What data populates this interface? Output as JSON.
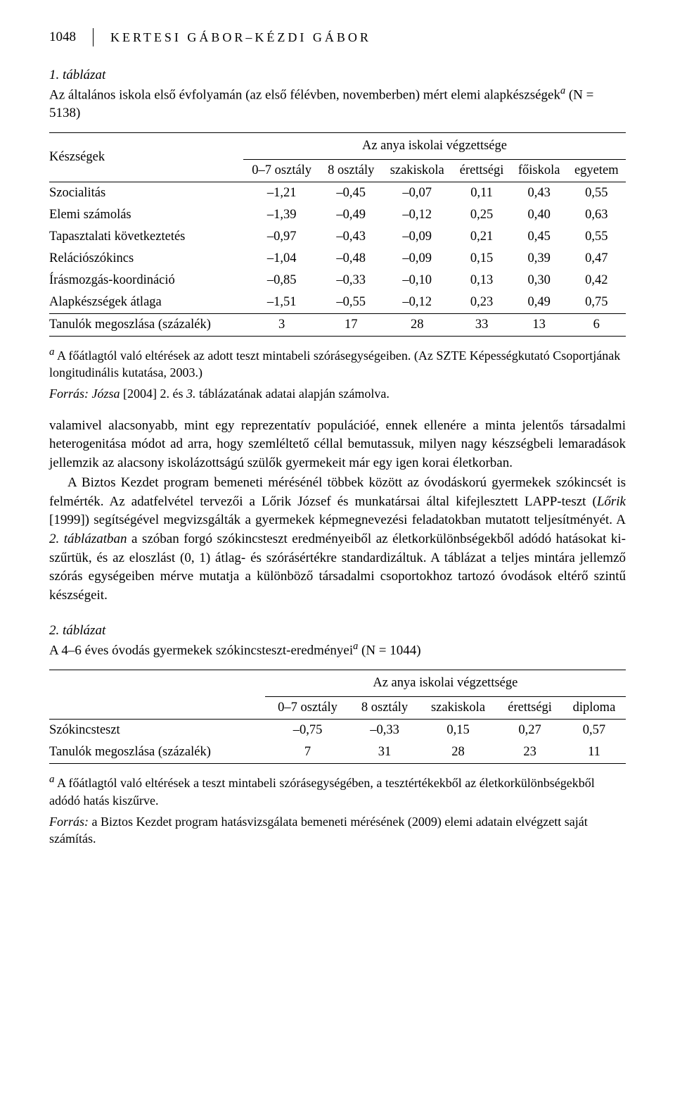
{
  "header": {
    "page_number": "1048",
    "authors": "KERTESI GÁBOR–KÉZDI GÁBOR"
  },
  "table1": {
    "label": "1. táblázat",
    "caption_prefix": "Az általános iskola első évfolyamán (az első félévben, novemberben) mért elemi alapkészségek",
    "caption_suffix": " (N = 5138)",
    "col_left_header": "Készségek",
    "spanning_header": "Az anya iskolai végzettsége",
    "columns": [
      "0–7 osztály",
      "8 osztály",
      "szakiskola",
      "érettségi",
      "főiskola",
      "egyetem"
    ],
    "rows": [
      {
        "label": "Szocialitás",
        "values": [
          "–1,21",
          "–0,45",
          "–0,07",
          "0,11",
          "0,43",
          "0,55"
        ]
      },
      {
        "label": "Elemi számolás",
        "values": [
          "–1,39",
          "–0,49",
          "–0,12",
          "0,25",
          "0,40",
          "0,63"
        ]
      },
      {
        "label": "Tapasztalati következtetés",
        "values": [
          "–0,97",
          "–0,43",
          "–0,09",
          "0,21",
          "0,45",
          "0,55"
        ]
      },
      {
        "label": "Relációszókincs",
        "values": [
          "–1,04",
          "–0,48",
          "–0,09",
          "0,15",
          "0,39",
          "0,47"
        ]
      },
      {
        "label": "Írásmozgás-koordináció",
        "values": [
          "–0,85",
          "–0,33",
          "–0,10",
          "0,13",
          "0,30",
          "0,42"
        ]
      },
      {
        "label": "Alapkészségek átlaga",
        "values": [
          "–1,51",
          "–0,55",
          "–0,12",
          "0,23",
          "0,49",
          "0,75"
        ]
      }
    ],
    "footer_row": {
      "label": "Tanulók megoszlása (százalék)",
      "values": [
        "3",
        "17",
        "28",
        "33",
        "13",
        "6"
      ]
    },
    "footnote": "A főátlagtól való eltérések az adott teszt mintabeli szórásegységeiben. (Az SZTE Képesség­kutató Csoportjának longitudinális kutatása, 2003.)",
    "source_prefix": "Forrás: Józsa",
    "source_year": "[2004] 2.",
    "source_mid": " és ",
    "source_em": "3.",
    "source_suffix": " táblázatának adatai alapján számolva."
  },
  "paragraphs": {
    "p1": "valamivel alacsonyabb, mint egy reprezentatív populációé, ennek ellenére a minta je­lentős társadalmi heterogenitása módot ad arra, hogy szemléltető céllal bemutassuk, milyen nagy készségbeli lemaradások jellemzik az alacsony iskolázottságú szülők gyermekeit már egy igen korai életkorban.",
    "p2a": "A Biztos Kezdet program bemeneti mérésénél többek között az óvodáskorú gyer­mekek szókincsét is felmérték. Az adatfelvétel tervezői a Lőrik József és munkatársai által kifejlesztett LAPP-teszt (",
    "p2_em1": "Lőrik",
    "p2b": " [1999]) segítségével megvizsgálták a gyermekek képmegnevezési feladatokban mutatott teljesítményét. A ",
    "p2_em2": "2. táblázatban",
    "p2c": " a szóban forgó szókincsteszt eredményeiből az életkorkülönbségekből adódó hatásokat ki­szűrtük, és az eloszlást (0, 1) átlag- és szórásértékre standardizáltuk. A táblázat a teljes mintára jellemző szórás egységeiben mérve mutatja a különböző társadalmi csoportokhoz tartozó óvodások eltérő szintű készségeit."
  },
  "table2": {
    "label": "2. táblázat",
    "caption_prefix": "A 4–6 éves óvodás gyermekek szókincsteszt-eredményei",
    "caption_suffix": " (N = 1044)",
    "spanning_header": "Az anya iskolai végzettsége",
    "columns": [
      "0–7 osztály",
      "8 osztály",
      "szakiskola",
      "érettségi",
      "diploma"
    ],
    "rows": [
      {
        "label": "Szókincsteszt",
        "values": [
          "–0,75",
          "–0,33",
          "0,15",
          "0,27",
          "0,57"
        ]
      },
      {
        "label": "Tanulók megoszlása (százalék)",
        "values": [
          "7",
          "31",
          "28",
          "23",
          "11"
        ]
      }
    ],
    "footnote": "A főátlagtól való eltérések a teszt mintabeli szórásegységében, a tesztértékekből az életkor­különbségekből adódó hatás kiszűrve.",
    "source_prefix": "Forrás:",
    "source_rest": " a Biztos Kezdet program hatásvizsgálata bemeneti mérésének (2009) elemi adatain elvégzett saját számítás."
  }
}
